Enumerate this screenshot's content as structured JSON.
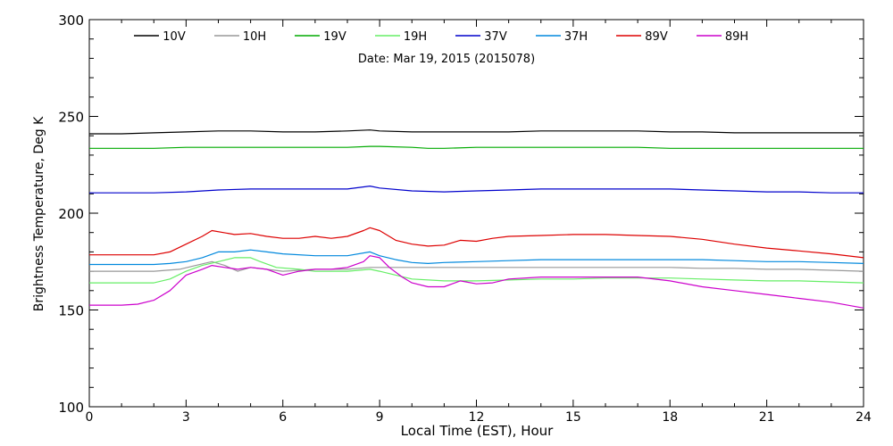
{
  "chart_data": {
    "type": "line",
    "title": "Date: Mar 19, 2015 (2015078)",
    "xlabel": "Local Time (EST), Hour",
    "ylabel": "Brightness Temperature, Deg K",
    "xlim": [
      0,
      24
    ],
    "ylim": [
      100,
      300
    ],
    "xticks": [
      0,
      3,
      6,
      9,
      12,
      15,
      18,
      21,
      24
    ],
    "yticks": [
      100,
      150,
      200,
      250,
      300
    ],
    "grid": false,
    "legend_position": "top",
    "series": [
      {
        "name": "10V",
        "color": "#000000",
        "x": [
          0,
          1,
          2,
          3,
          4,
          5,
          6,
          7,
          8,
          8.7,
          9,
          10,
          11,
          12,
          13,
          14,
          15,
          16,
          17,
          18,
          19,
          20,
          21,
          22,
          23,
          24
        ],
        "y": [
          241,
          241,
          241.5,
          242,
          242.5,
          242.5,
          242,
          242,
          242.5,
          243,
          242.5,
          242,
          242,
          242,
          242,
          242.5,
          242.5,
          242.5,
          242.5,
          242,
          242,
          241.5,
          241.5,
          241.5,
          241.5,
          241.5
        ]
      },
      {
        "name": "10H",
        "color": "#999999",
        "x": [
          0,
          1,
          2,
          2.8,
          3.3,
          3.8,
          4.2,
          4.6,
          5,
          5.5,
          6,
          7,
          8,
          8.7,
          9,
          10,
          11,
          12,
          13,
          14,
          15,
          16,
          17,
          18,
          19,
          20,
          21,
          22,
          23,
          24
        ],
        "y": [
          170,
          170,
          170,
          171,
          173,
          175,
          173,
          170,
          172,
          171,
          170,
          171,
          171,
          172,
          172,
          172,
          172,
          172,
          172,
          172,
          172,
          172,
          172,
          172,
          171.5,
          171.5,
          171,
          171,
          170.5,
          170
        ]
      },
      {
        "name": "19V",
        "color": "#00aa00",
        "x": [
          0,
          1,
          2,
          3,
          4,
          5,
          6,
          7,
          8,
          8.7,
          9,
          10,
          10.5,
          11,
          12,
          13,
          14,
          15,
          16,
          17,
          18,
          19,
          20,
          21,
          22,
          23,
          24
        ],
        "y": [
          233.5,
          233.5,
          233.5,
          234,
          234,
          234,
          234,
          234,
          234,
          234.5,
          234.5,
          234,
          233.5,
          233.5,
          234,
          234,
          234,
          234,
          234,
          234,
          233.5,
          233.5,
          233.5,
          233.5,
          233.5,
          233.5,
          233.5
        ]
      },
      {
        "name": "19H",
        "color": "#66ee66",
        "x": [
          0,
          1,
          2,
          2.5,
          3,
          3.5,
          4,
          4.5,
          5,
          5.3,
          5.8,
          6.5,
          7,
          8,
          8.7,
          9,
          9.5,
          10,
          11,
          12,
          13,
          14,
          15,
          16,
          17,
          18,
          19,
          20,
          21,
          22,
          23,
          24
        ],
        "y": [
          164,
          164,
          164,
          166,
          170,
          173,
          175,
          177,
          177,
          175,
          172,
          171,
          170,
          170,
          171,
          170,
          168,
          166,
          165,
          165,
          165.5,
          166,
          166,
          166.5,
          166.5,
          166.5,
          166,
          165.5,
          165,
          165,
          164.5,
          164
        ]
      },
      {
        "name": "37V",
        "color": "#0000cc",
        "x": [
          0,
          1,
          2,
          3,
          4,
          5,
          6,
          7,
          8,
          8.7,
          9,
          10,
          11,
          12,
          13,
          14,
          15,
          16,
          17,
          18,
          19,
          20,
          21,
          22,
          23,
          24
        ],
        "y": [
          210.5,
          210.5,
          210.5,
          211,
          212,
          212.5,
          212.5,
          212.5,
          212.5,
          214,
          213,
          211.5,
          211,
          211.5,
          212,
          212.5,
          212.5,
          212.5,
          212.5,
          212.5,
          212,
          211.5,
          211,
          211,
          210.5,
          210.5
        ]
      },
      {
        "name": "37H",
        "color": "#0088dd",
        "x": [
          0,
          1,
          2,
          2.5,
          3,
          3.5,
          4,
          4.5,
          5,
          5.5,
          6,
          7,
          8,
          8.7,
          9,
          9.5,
          10,
          10.5,
          11,
          12,
          13,
          14,
          15,
          16,
          17,
          18,
          19,
          20,
          21,
          22,
          23,
          24
        ],
        "y": [
          173.5,
          173.5,
          173.5,
          174,
          175,
          177,
          180,
          180,
          181,
          180,
          179,
          178,
          178,
          180,
          178,
          176,
          174.5,
          174,
          174.5,
          175,
          175.5,
          176,
          176,
          176,
          176,
          176,
          176,
          175.5,
          175,
          175,
          174.5,
          174
        ]
      },
      {
        "name": "89V",
        "color": "#dd0000",
        "x": [
          0,
          1,
          2,
          2.5,
          3,
          3.5,
          3.8,
          4.5,
          5,
          5.5,
          6,
          6.5,
          7,
          7.5,
          8,
          8.5,
          8.7,
          9,
          9.5,
          10,
          10.5,
          11,
          11.5,
          12,
          12.5,
          13,
          14,
          15,
          16,
          17,
          18,
          19,
          20,
          21,
          22,
          23,
          24
        ],
        "y": [
          178.5,
          178.5,
          178.5,
          180,
          184,
          188,
          191,
          189,
          189.5,
          188,
          187,
          187,
          188,
          187,
          188,
          191,
          192.5,
          191,
          186,
          184,
          183,
          183.5,
          186,
          185.5,
          187,
          188,
          188.5,
          189,
          189,
          188.5,
          188,
          186.5,
          184,
          182,
          180.5,
          179,
          177
        ]
      },
      {
        "name": "89H",
        "color": "#cc00cc",
        "x": [
          0,
          0.5,
          1,
          1.5,
          2,
          2.5,
          3,
          3.5,
          3.8,
          4.2,
          4.6,
          5,
          5.5,
          6,
          6.5,
          7,
          7.5,
          8,
          8.5,
          8.7,
          9,
          9.3,
          9.7,
          10,
          10.5,
          11,
          11.5,
          12,
          12.5,
          13,
          14,
          15,
          16,
          17,
          18,
          19,
          20,
          21,
          22,
          23,
          24
        ],
        "y": [
          152.5,
          152.5,
          152.5,
          153,
          155,
          160,
          168,
          171,
          173,
          172,
          171,
          172,
          171,
          168,
          170,
          171,
          171,
          172,
          175,
          178,
          177,
          172,
          167,
          164,
          162,
          162,
          165,
          163.5,
          164,
          166,
          167,
          167,
          167,
          167,
          165,
          162,
          160,
          158,
          156,
          154,
          151
        ]
      }
    ]
  }
}
